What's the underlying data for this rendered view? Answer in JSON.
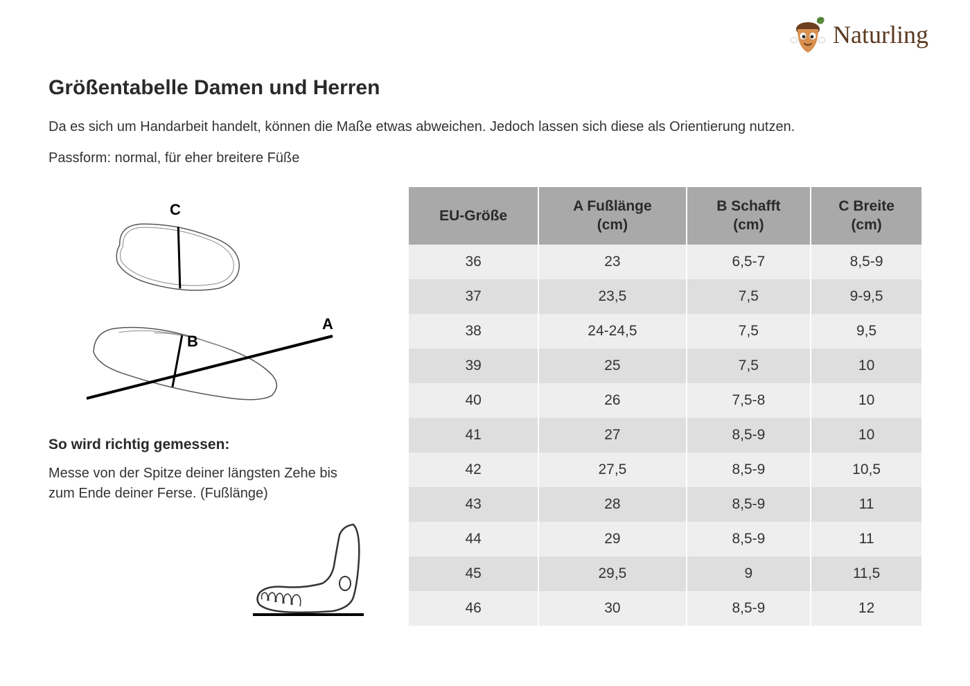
{
  "brand": "Naturling",
  "title": "Größentabelle Damen und Herren",
  "intro": "Da es sich um Handarbeit handelt, können die Maße etwas abweichen. Jedoch lassen sich diese als Orientierung nutzen.",
  "fit": "Passform: normal, für eher breitere Füße",
  "measure_title": "So wird richtig gemessen:",
  "measure_text": "Messe von der Spitze deiner längsten Zehe bis zum Ende deiner Ferse. (Fußlänge)",
  "diagram_labels": {
    "a": "A",
    "b": "B",
    "c": "C"
  },
  "table": {
    "columns": [
      {
        "line1": "EU-Größe",
        "line2": ""
      },
      {
        "line1": "A Fußlänge",
        "line2": "(cm)"
      },
      {
        "line1": "B Schafft",
        "line2": "(cm)"
      },
      {
        "line1": "C Breite",
        "line2": "(cm)"
      }
    ],
    "rows": [
      [
        "36",
        "23",
        "6,5-7",
        "8,5-9"
      ],
      [
        "37",
        "23,5",
        "7,5",
        "9-9,5"
      ],
      [
        "38",
        "24-24,5",
        "7,5",
        "9,5"
      ],
      [
        "39",
        "25",
        "7,5",
        "10"
      ],
      [
        "40",
        "26",
        "7,5-8",
        "10"
      ],
      [
        "41",
        "27",
        "8,5-9",
        "10"
      ],
      [
        "42",
        "27,5",
        "8,5-9",
        "10,5"
      ],
      [
        "43",
        "28",
        "8,5-9",
        "11"
      ],
      [
        "44",
        "29",
        "8,5-9",
        "11"
      ],
      [
        "45",
        "29,5",
        "9",
        "11,5"
      ],
      [
        "46",
        "30",
        "8,5-9",
        "12"
      ]
    ],
    "header_bg": "#a9a9a9",
    "row_odd_bg": "#eeeeee",
    "row_even_bg": "#dedede",
    "font_size": 21
  },
  "colors": {
    "text": "#333333",
    "heading": "#2a2a2a",
    "background": "#ffffff",
    "brand_text": "#5a3820",
    "acorn_body": "#d89050",
    "acorn_cap": "#6b4020",
    "leaf": "#5a8a3a"
  }
}
